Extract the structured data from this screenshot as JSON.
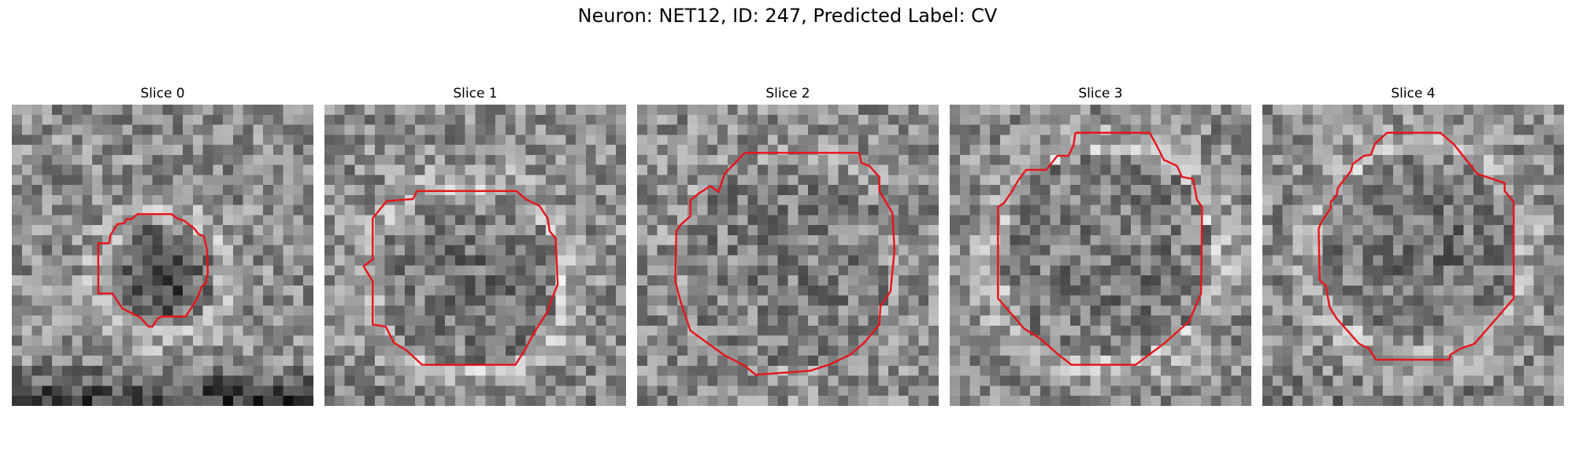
{
  "figure": {
    "title": "Neuron: NET12, ID: 247, Predicted Label: CV"
  },
  "colors": {
    "contour": "#e8141a",
    "colormap": "gray"
  },
  "panels": [
    {
      "title": "Slice 0",
      "image": "grayscale-microscopy-slice",
      "contour_shape": "small-octagon-roi"
    },
    {
      "title": "Slice 1",
      "image": "grayscale-microscopy-slice",
      "contour_shape": "octagon-roi"
    },
    {
      "title": "Slice 2",
      "image": "grayscale-microscopy-slice",
      "contour_shape": "large-octagon-roi"
    },
    {
      "title": "Slice 3",
      "image": "grayscale-microscopy-slice",
      "contour_shape": "large-octagon-roi"
    },
    {
      "title": "Slice 4",
      "image": "grayscale-microscopy-slice",
      "contour_shape": "large-octagon-roi"
    }
  ]
}
